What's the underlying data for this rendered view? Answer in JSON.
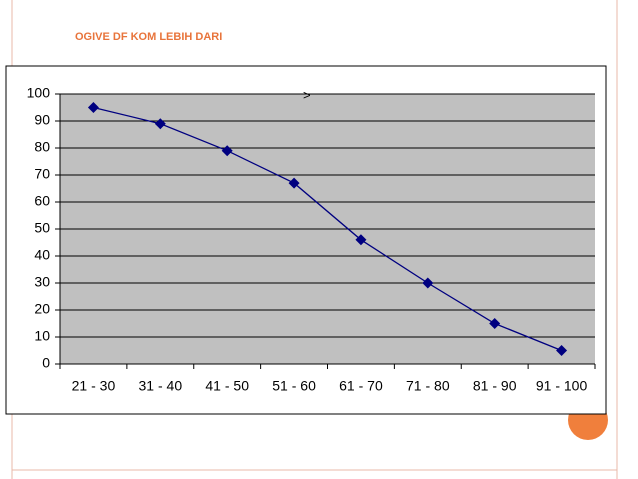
{
  "chart_data": {
    "type": "line",
    "title": "OGIVE DF KOM LEBIH DARI",
    "annotation": ">",
    "categories": [
      "21 - 30",
      "31 - 40",
      "41 - 50",
      "51 - 60",
      "61 - 70",
      "71 - 80",
      "81 - 90",
      "91 - 100"
    ],
    "values": [
      95,
      89,
      79,
      67,
      46,
      30,
      15,
      5
    ],
    "color": "#000080",
    "ylim": [
      0,
      100
    ],
    "yticks": [
      0,
      10,
      20,
      30,
      40,
      50,
      60,
      70,
      80,
      90,
      100
    ],
    "grid": true
  }
}
